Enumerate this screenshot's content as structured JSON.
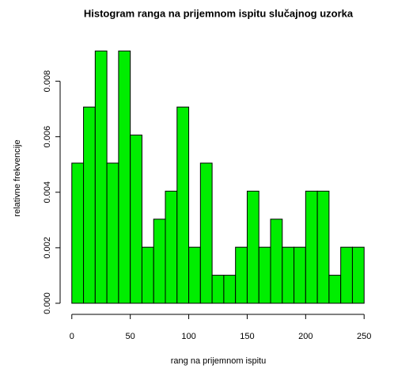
{
  "chart_data": {
    "type": "histogram",
    "title": "Histogram ranga na prijemnom ispitu slučajnog uzorka",
    "xlabel": "rang na prijemnom ispitu",
    "ylabel": "relativne frekvencije",
    "bins": [
      0,
      10,
      20,
      30,
      40,
      50,
      60,
      70,
      80,
      90,
      100,
      110,
      120,
      130,
      140,
      150,
      160,
      170,
      180,
      190,
      200,
      210,
      220,
      230,
      240,
      250
    ],
    "values": [
      0.00505,
      0.00707,
      0.00909,
      0.00505,
      0.00909,
      0.00606,
      0.00202,
      0.00303,
      0.00404,
      0.00707,
      0.00202,
      0.00505,
      0.00101,
      0.00101,
      0.00202,
      0.00404,
      0.00202,
      0.00303,
      0.00202,
      0.00202,
      0.00404,
      0.00404,
      0.00101,
      0.00202,
      0.00202
    ],
    "color": "#00ee00",
    "xlim": [
      -10,
      260
    ],
    "ylim": [
      -0.0004,
      0.0095
    ],
    "xticks": [
      0,
      50,
      100,
      150,
      200,
      250
    ],
    "yticks": [
      {
        "value": 0,
        "label": "0.000"
      },
      {
        "value": 0.002,
        "label": "0.002"
      },
      {
        "value": 0.004,
        "label": "0.004"
      },
      {
        "value": 0.006,
        "label": "0.006"
      },
      {
        "value": 0.008,
        "label": "0.008"
      }
    ]
  }
}
